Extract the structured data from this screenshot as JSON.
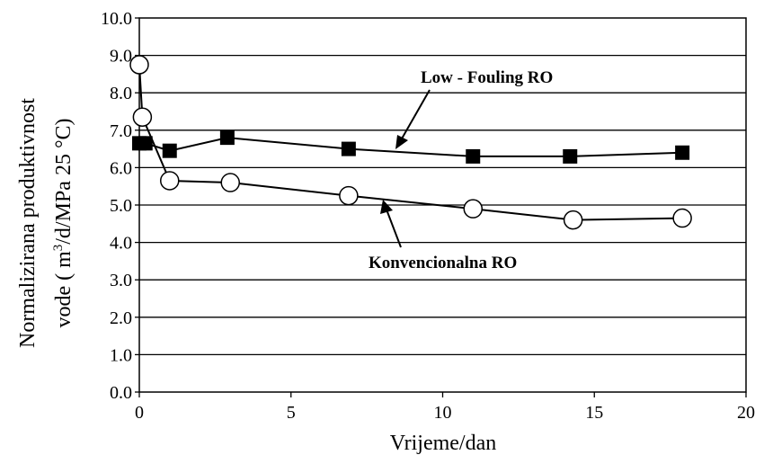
{
  "chart_data": {
    "type": "line",
    "xlabel": "Vrijeme/dan",
    "ylabel_line1": "Normalizirana produktivnost",
    "ylabel_line2_prefix": "vode ( m",
    "ylabel_line2_sup": "3",
    "ylabel_line2_suffix": "/d/MPa 25 °C)",
    "xlim": [
      0,
      20
    ],
    "ylim": [
      0,
      10
    ],
    "x_ticks": [
      "0",
      "5",
      "10",
      "15",
      "20"
    ],
    "y_ticks": [
      "0.0",
      "1.0",
      "2.0",
      "3.0",
      "4.0",
      "5.0",
      "6.0",
      "7.0",
      "8.0",
      "9.0",
      "10.0"
    ],
    "grid": "horizontal",
    "series": [
      {
        "name": "Low - Fouling RO",
        "marker": "square-filled",
        "color": "#000000",
        "points": [
          {
            "x": 0.0,
            "y": 6.65
          },
          {
            "x": 0.2,
            "y": 6.65
          },
          {
            "x": 1.0,
            "y": 6.45
          },
          {
            "x": 2.9,
            "y": 6.8
          },
          {
            "x": 6.9,
            "y": 6.5
          },
          {
            "x": 11.0,
            "y": 6.3
          },
          {
            "x": 14.2,
            "y": 6.3
          },
          {
            "x": 17.9,
            "y": 6.4
          }
        ]
      },
      {
        "name": "Konvencionalna RO",
        "marker": "circle-open",
        "color": "#000000",
        "points": [
          {
            "x": 0.0,
            "y": 8.75
          },
          {
            "x": 0.1,
            "y": 7.35
          },
          {
            "x": 1.0,
            "y": 5.65
          },
          {
            "x": 3.0,
            "y": 5.6
          },
          {
            "x": 6.9,
            "y": 5.25
          },
          {
            "x": 11.0,
            "y": 4.9
          },
          {
            "x": 14.3,
            "y": 4.6
          },
          {
            "x": 17.9,
            "y": 4.65
          }
        ]
      }
    ],
    "annotations": [
      {
        "text": "Low - Fouling RO",
        "series": 0
      },
      {
        "text": "Konvencionalna RO",
        "series": 1
      }
    ]
  }
}
